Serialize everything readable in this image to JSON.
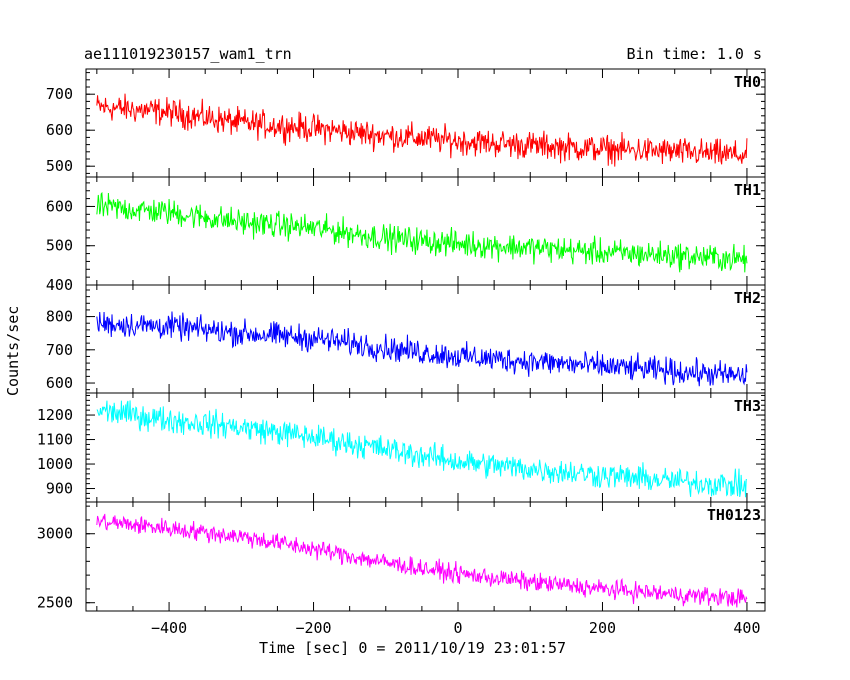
{
  "header": {
    "title": "ae111019230157_wam1_trn",
    "bin_time": "Bin time: 1.0 s"
  },
  "chart_data": {
    "type": "line",
    "title": "ae111019230157_wam1_trn",
    "subtitle": "Bin time: 1.0 s",
    "xlabel": "Time [sec] 0 = 2011/10/19 23:01:57",
    "ylabel": "Counts/sec",
    "xlim": [
      -515,
      425
    ],
    "x_ticks": [
      -400,
      -200,
      0,
      200,
      400
    ],
    "x_range": [
      -500,
      400
    ],
    "bin_time_s": 1.0,
    "grid": false,
    "panels": [
      {
        "name": "TH0",
        "color": "#ff0000",
        "ylim": [
          470,
          770
        ],
        "y_ticks": [
          500,
          600,
          700
        ],
        "trend": [
          [
            -500,
            665
          ],
          [
            -400,
            650
          ],
          [
            -300,
            620
          ],
          [
            -200,
            605
          ],
          [
            -100,
            585
          ],
          [
            0,
            570
          ],
          [
            100,
            558
          ],
          [
            200,
            548
          ],
          [
            300,
            540
          ],
          [
            400,
            530
          ]
        ],
        "noise_amplitude": 40
      },
      {
        "name": "TH1",
        "color": "#00ff00",
        "ylim": [
          400,
          675
        ],
        "y_ticks": [
          400,
          500,
          600
        ],
        "trend": [
          [
            -500,
            600
          ],
          [
            -400,
            585
          ],
          [
            -300,
            560
          ],
          [
            -200,
            545
          ],
          [
            -100,
            520
          ],
          [
            0,
            505
          ],
          [
            100,
            495
          ],
          [
            200,
            483
          ],
          [
            300,
            475
          ],
          [
            400,
            465
          ]
        ],
        "noise_amplitude": 35
      },
      {
        "name": "TH2",
        "color": "#0000ff",
        "ylim": [
          570,
          895
        ],
        "y_ticks": [
          600,
          700,
          800
        ],
        "trend": [
          [
            -500,
            780
          ],
          [
            -400,
            770
          ],
          [
            -300,
            750
          ],
          [
            -200,
            735
          ],
          [
            -100,
            705
          ],
          [
            0,
            680
          ],
          [
            100,
            665
          ],
          [
            200,
            650
          ],
          [
            300,
            635
          ],
          [
            400,
            620
          ]
        ],
        "noise_amplitude": 40
      },
      {
        "name": "TH3",
        "color": "#00ffff",
        "ylim": [
          845,
          1290
        ],
        "y_ticks": [
          900,
          1000,
          1100,
          1200
        ],
        "trend": [
          [
            -500,
            1220
          ],
          [
            -400,
            1180
          ],
          [
            -300,
            1150
          ],
          [
            -200,
            1110
          ],
          [
            -100,
            1060
          ],
          [
            0,
            1010
          ],
          [
            100,
            980
          ],
          [
            200,
            955
          ],
          [
            300,
            930
          ],
          [
            400,
            910
          ]
        ],
        "noise_amplitude": 55
      },
      {
        "name": "TH0123",
        "color": "#ff00ff",
        "ylim": [
          2440,
          3230
        ],
        "y_ticks": [
          2500,
          3000
        ],
        "trend": [
          [
            -500,
            3090
          ],
          [
            -400,
            3040
          ],
          [
            -300,
            2980
          ],
          [
            -200,
            2890
          ],
          [
            -100,
            2790
          ],
          [
            0,
            2710
          ],
          [
            100,
            2650
          ],
          [
            200,
            2600
          ],
          [
            300,
            2560
          ],
          [
            400,
            2530
          ]
        ],
        "noise_amplitude": 70
      }
    ]
  }
}
